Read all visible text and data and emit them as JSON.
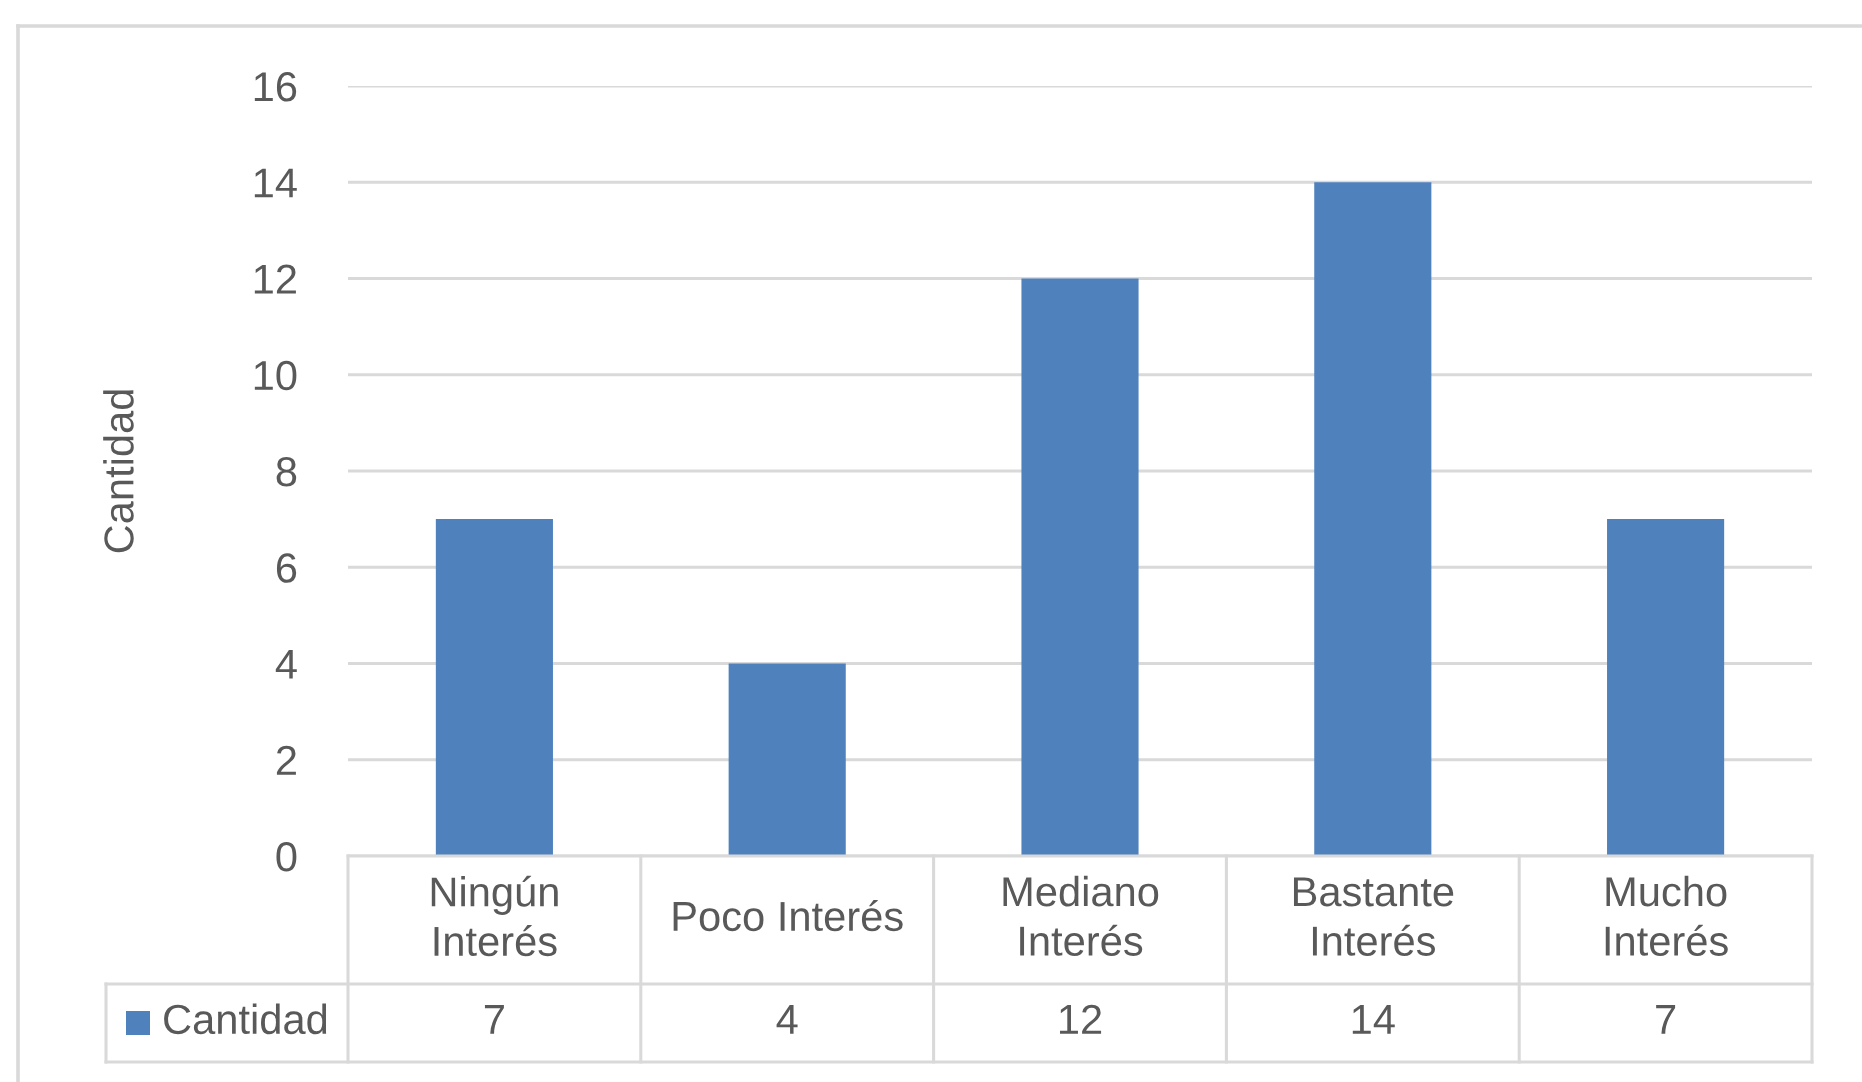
{
  "chart_data": {
    "type": "bar",
    "ylabel": "Cantidad",
    "categories": [
      "Ningún Interés",
      "Poco Interés",
      "Mediano Interés",
      "Bastante Interés",
      "Mucho Interés"
    ],
    "series": [
      {
        "name": "Cantidad",
        "color": "#4f81bd",
        "values": [
          7,
          4,
          12,
          14,
          7
        ]
      }
    ],
    "ylim": [
      0,
      16
    ],
    "yticks": [
      0,
      2,
      4,
      6,
      8,
      10,
      12,
      14,
      16
    ],
    "grid": "y",
    "data_labels": true
  }
}
